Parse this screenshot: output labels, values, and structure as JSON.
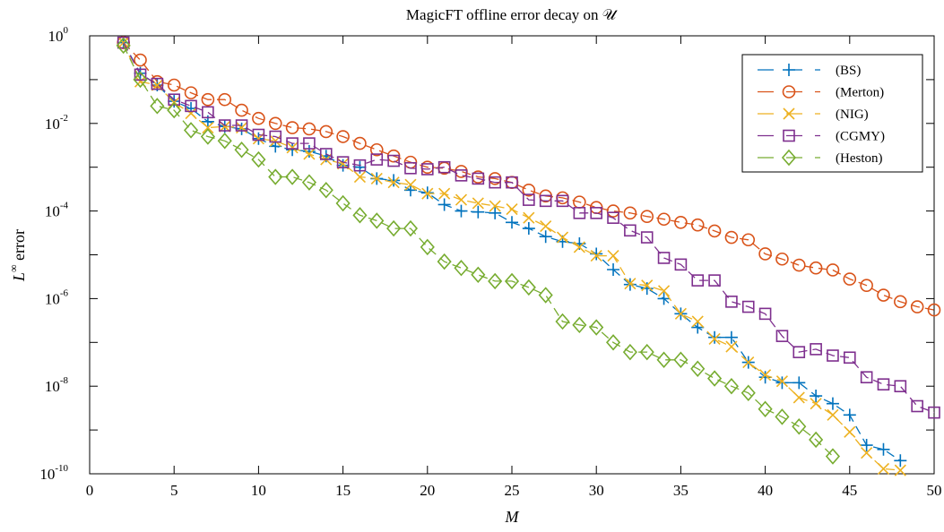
{
  "chart_data": {
    "type": "line",
    "title": "MagicFT offline error decay on 𝒰",
    "xlabel": "M",
    "ylabel": "error",
    "ylabel_symbol": "L",
    "ylabel_superscript": "∞",
    "xscale": "linear",
    "yscale": "log",
    "xlim": [
      0,
      50
    ],
    "ylim": [
      1e-10,
      1
    ],
    "xticks": [
      0,
      5,
      10,
      15,
      20,
      25,
      30,
      35,
      40,
      45,
      50
    ],
    "yticks": [
      {
        "base": "10",
        "exp": "0",
        "value": 1
      },
      {
        "base": "10",
        "exp": "-2",
        "value": 0.01
      },
      {
        "base": "10",
        "exp": "-4",
        "value": 0.0001
      },
      {
        "base": "10",
        "exp": "-6",
        "value": 1e-06
      },
      {
        "base": "10",
        "exp": "-8",
        "value": 1e-08
      },
      {
        "base": "10",
        "exp": "-10",
        "value": 1e-10
      }
    ],
    "grid": false,
    "legend_position": "top-right",
    "series": [
      {
        "name": "(BS)",
        "color": "#0072BD",
        "marker": "plus",
        "x": [
          2,
          3,
          4,
          5,
          6,
          7,
          8,
          9,
          10,
          11,
          12,
          13,
          14,
          15,
          16,
          17,
          18,
          19,
          20,
          21,
          22,
          23,
          24,
          25,
          26,
          27,
          28,
          29,
          30,
          31,
          32,
          33,
          34,
          35,
          36,
          37,
          38,
          39,
          40,
          41,
          42,
          43,
          44,
          45,
          46,
          47,
          48
        ],
        "y": [
          0.7,
          0.14,
          0.075,
          0.032,
          0.022,
          0.011,
          0.0085,
          0.0075,
          0.0045,
          0.003,
          0.0025,
          0.0023,
          0.0018,
          0.0011,
          0.001,
          0.00055,
          0.0005,
          0.0003,
          0.00026,
          0.00014,
          0.0001,
          9.5e-05,
          9e-05,
          5.5e-05,
          4e-05,
          2.6e-05,
          2e-05,
          1.8e-05,
          1.05e-05,
          4.6e-06,
          2.1e-06,
          1.7e-06,
          1e-06,
          4.5e-07,
          2.2e-07,
          1.3e-07,
          1.3e-07,
          3.5e-08,
          1.6e-08,
          1.2e-08,
          1.2e-08,
          6e-09,
          4e-09,
          2.2e-09,
          4.5e-10,
          3.6e-10,
          2e-10
        ]
      },
      {
        "name": "(Merton)",
        "color": "#D95319",
        "marker": "circle",
        "x": [
          2,
          3,
          4,
          5,
          6,
          7,
          8,
          9,
          10,
          11,
          12,
          13,
          14,
          15,
          16,
          17,
          18,
          19,
          20,
          21,
          22,
          23,
          24,
          25,
          26,
          27,
          28,
          29,
          30,
          31,
          32,
          33,
          34,
          35,
          36,
          37,
          38,
          39,
          40,
          41,
          42,
          43,
          44,
          45,
          46,
          47,
          48,
          49,
          50
        ],
        "y": [
          0.7,
          0.28,
          0.09,
          0.075,
          0.05,
          0.035,
          0.035,
          0.02,
          0.013,
          0.01,
          0.008,
          0.0075,
          0.0065,
          0.005,
          0.0035,
          0.0025,
          0.0018,
          0.0013,
          0.001,
          0.00095,
          0.0008,
          0.0006,
          0.00055,
          0.00045,
          0.0003,
          0.00022,
          0.0002,
          0.00016,
          0.00012,
          0.0001,
          9e-05,
          7.5e-05,
          6.5e-05,
          5.5e-05,
          4.8e-05,
          3.5e-05,
          2.5e-05,
          2.2e-05,
          1.05e-05,
          8e-06,
          5.8e-06,
          5e-06,
          4.5e-06,
          2.8e-06,
          2e-06,
          1.2e-06,
          8.5e-07,
          6.5e-07,
          5.5e-07
        ]
      },
      {
        "name": "(NIG)",
        "color": "#EDB120",
        "marker": "cross",
        "x": [
          2,
          3,
          4,
          5,
          6,
          7,
          8,
          9,
          10,
          11,
          12,
          13,
          14,
          15,
          16,
          17,
          18,
          19,
          20,
          21,
          22,
          23,
          24,
          25,
          26,
          27,
          28,
          29,
          30,
          31,
          32,
          33,
          34,
          35,
          36,
          37,
          38,
          39,
          40,
          41,
          42,
          43,
          44,
          45,
          46,
          47,
          48
        ],
        "y": [
          0.7,
          0.09,
          0.075,
          0.03,
          0.017,
          0.008,
          0.0085,
          0.008,
          0.0045,
          0.004,
          0.0028,
          0.002,
          0.0015,
          0.0012,
          0.0006,
          0.00055,
          0.00045,
          0.0004,
          0.00025,
          0.00025,
          0.00018,
          0.00015,
          0.00013,
          0.00011,
          7e-05,
          4.5e-05,
          2.5e-05,
          1.5e-05,
          9.5e-06,
          9.5e-06,
          2.2e-06,
          2e-06,
          1.5e-06,
          4.5e-07,
          3e-07,
          1.2e-07,
          8e-08,
          3.5e-08,
          1.8e-08,
          1.3e-08,
          5.5e-09,
          4e-09,
          2.2e-09,
          9e-10,
          3e-10,
          1.3e-10,
          1.2e-10
        ]
      },
      {
        "name": "(CGMY)",
        "color": "#7E2F8E",
        "marker": "square",
        "x": [
          2,
          3,
          4,
          5,
          6,
          7,
          8,
          9,
          10,
          11,
          12,
          13,
          14,
          15,
          16,
          17,
          18,
          19,
          20,
          21,
          22,
          23,
          24,
          25,
          26,
          27,
          28,
          29,
          30,
          31,
          32,
          33,
          34,
          35,
          36,
          37,
          38,
          39,
          40,
          41,
          42,
          43,
          44,
          45,
          46,
          47,
          48,
          49,
          50
        ],
        "y": [
          0.7,
          0.13,
          0.08,
          0.035,
          0.025,
          0.018,
          0.009,
          0.009,
          0.0055,
          0.005,
          0.0035,
          0.0035,
          0.002,
          0.0013,
          0.0011,
          0.0015,
          0.0014,
          0.00095,
          0.0009,
          0.001,
          0.00065,
          0.00055,
          0.00045,
          0.00045,
          0.00018,
          0.00017,
          0.00017,
          9e-05,
          9e-05,
          7e-05,
          3.6e-05,
          2.5e-05,
          8.5e-06,
          6e-06,
          2.6e-06,
          2.6e-06,
          8.5e-07,
          6.5e-07,
          4.5e-07,
          1.4e-07,
          6e-08,
          7e-08,
          5e-08,
          4.5e-08,
          1.6e-08,
          1.1e-08,
          1e-08,
          3.5e-09,
          2.5e-09
        ]
      },
      {
        "name": "(Heston)",
        "color": "#77AC30",
        "marker": "diamond",
        "x": [
          2,
          3,
          4,
          5,
          6,
          7,
          8,
          9,
          10,
          11,
          12,
          13,
          14,
          15,
          16,
          17,
          18,
          19,
          20,
          21,
          22,
          23,
          24,
          25,
          26,
          27,
          28,
          29,
          30,
          31,
          32,
          33,
          34,
          35,
          36,
          37,
          38,
          39,
          40,
          41,
          42,
          43,
          44
        ],
        "y": [
          0.6,
          0.1,
          0.025,
          0.02,
          0.007,
          0.005,
          0.004,
          0.0025,
          0.0015,
          0.0006,
          0.0006,
          0.00045,
          0.0003,
          0.00015,
          8e-05,
          6e-05,
          4e-05,
          4e-05,
          1.5e-05,
          7e-06,
          5e-06,
          3.5e-06,
          2.5e-06,
          2.5e-06,
          1.8e-06,
          1.2e-06,
          3e-07,
          2.5e-07,
          2.2e-07,
          1e-07,
          6e-08,
          6e-08,
          4e-08,
          4e-08,
          2.5e-08,
          1.5e-08,
          1e-08,
          7e-09,
          3e-09,
          2e-09,
          1.2e-09,
          6e-10,
          2.5e-10
        ]
      }
    ]
  }
}
